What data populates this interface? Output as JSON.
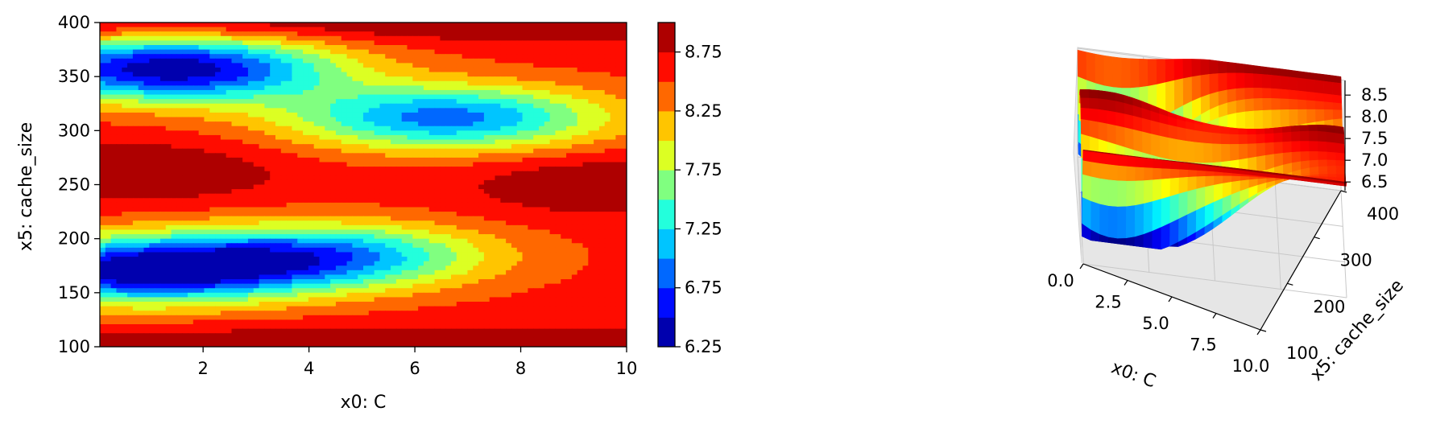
{
  "chart_data": [
    {
      "type": "contour",
      "xlabel": "x0: C",
      "ylabel": "x5: cache_size",
      "xlim": [
        0.05,
        10
      ],
      "ylim": [
        100,
        400
      ],
      "xticks": [
        2,
        4,
        6,
        8,
        10
      ],
      "xtick_labels": [
        "2",
        "4",
        "6",
        "8",
        "10"
      ],
      "yticks": [
        100,
        150,
        200,
        250,
        300,
        350,
        400
      ],
      "ytick_labels": [
        "100",
        "150",
        "200",
        "250",
        "300",
        "350",
        "400"
      ],
      "colormap": "jet",
      "levels": [
        6.25,
        6.5,
        6.75,
        7.0,
        7.25,
        7.5,
        7.75,
        8.0,
        8.25,
        8.5,
        8.75,
        9.0
      ],
      "colorbar_ticks": [
        6.25,
        6.75,
        7.25,
        7.75,
        8.25,
        8.75
      ],
      "colorbar_tick_labels": [
        "6.25",
        "6.75",
        "7.25",
        "7.75",
        "8.25",
        "8.75"
      ],
      "grid": false,
      "features": [
        {
          "kind": "minimum",
          "x": 1.4,
          "y": 357,
          "value": 6.3
        },
        {
          "kind": "minimum",
          "x": 0.8,
          "y": 170,
          "value": 6.4
        },
        {
          "kind": "minimum",
          "x": 6.6,
          "y": 312,
          "value": 6.9
        },
        {
          "kind": "minimum",
          "x": 4.3,
          "y": 184,
          "value": 7.0
        },
        {
          "kind": "plateau",
          "x": 9.5,
          "y": 250,
          "value": 9.0
        },
        {
          "kind": "plateau",
          "x": 1.0,
          "y": 262,
          "value": 9.0
        }
      ]
    },
    {
      "type": "surface3d",
      "xlabel": "x0: C",
      "ylabel": "x5: cache_size",
      "xticks": [
        0.0,
        2.5,
        5.0,
        7.5,
        10.0
      ],
      "xtick_labels": [
        "0.0",
        "2.5",
        "5.0",
        "7.5",
        "10.0"
      ],
      "yticks": [
        100,
        200,
        300,
        400
      ],
      "ytick_labels": [
        "100",
        "200",
        "300",
        "400"
      ],
      "zticks": [
        6.5,
        7.0,
        7.5,
        8.0,
        8.5
      ],
      "ztick_labels": [
        "6.5",
        "7.0",
        "7.5",
        "8.0",
        "8.5"
      ],
      "zlim": [
        6.3,
        8.8
      ],
      "colormap": "jet",
      "grid": true
    }
  ]
}
